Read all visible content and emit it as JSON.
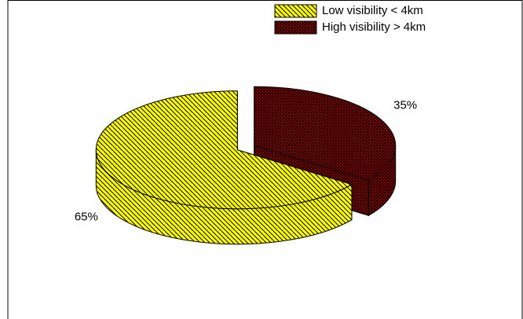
{
  "chart_data": {
    "type": "pie",
    "categories": [
      "Low visibility < 4km",
      "High visibility > 4km"
    ],
    "values": [
      65,
      35
    ],
    "value_labels": [
      "65%",
      "35%"
    ],
    "colors": [
      "#ffff00",
      "#990000"
    ],
    "legend": "top-right"
  }
}
